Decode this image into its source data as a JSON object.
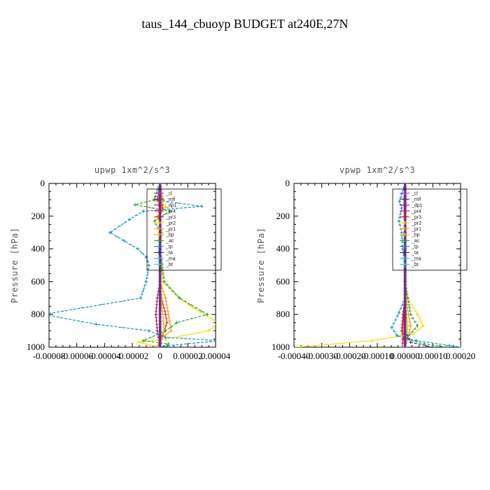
{
  "suptitle": "taus_144_cbuoyp  BUDGET at240E,27N",
  "chart_data": [
    {
      "type": "line",
      "title": "upwp   1xm^2/s^3",
      "ylabel": "Pressure [hPa]",
      "xlim": [
        -8e-05,
        4e-05
      ],
      "ylim": [
        1000,
        0
      ],
      "xticks": [
        "-0.00008",
        "-0.00006",
        "-0.00004",
        "-0.00002",
        "0",
        "0.00002",
        "0.00004"
      ],
      "yticks": [
        "0",
        "200",
        "400",
        "600",
        "800",
        "1000"
      ],
      "legend_position": "top-center",
      "series": [
        {
          "name": "_cl",
          "color": "#8a4bd6",
          "x": [
            0,
            0,
            0,
            0,
            0,
            0,
            0,
            0,
            0,
            0,
            0
          ],
          "y": [
            0,
            100,
            200,
            300,
            400,
            500,
            600,
            700,
            800,
            900,
            1000
          ]
        },
        {
          "name": "_mfl",
          "color": "#6a2c8f",
          "x": [
            0,
            0,
            0,
            0,
            0,
            0,
            0,
            0,
            0,
            0,
            0
          ],
          "y": [
            0,
            100,
            200,
            300,
            400,
            500,
            600,
            700,
            800,
            900,
            1000
          ]
        },
        {
          "name": "_dp1",
          "color": "#b0135c",
          "x": [
            0,
            2e-06,
            -1e-06,
            1e-06,
            0,
            5e-07,
            0,
            -2e-06,
            -3e-06,
            -2e-06,
            0
          ],
          "y": [
            0,
            100,
            200,
            300,
            400,
            500,
            600,
            700,
            800,
            900,
            1000
          ]
        },
        {
          "name": "_pr4",
          "color": "#c8186e",
          "x": [
            0,
            1e-06,
            0,
            0,
            0,
            0,
            0,
            0,
            0,
            0,
            0
          ],
          "y": [
            0,
            100,
            200,
            300,
            400,
            500,
            600,
            700,
            800,
            900,
            1000
          ]
        },
        {
          "name": "_pr3",
          "color": "#e0222a",
          "x": [
            0,
            -2e-06,
            2e-06,
            -1e-06,
            1e-06,
            0,
            0,
            1e-06,
            4e-06,
            5e-06,
            1e-06,
            -2e-06
          ],
          "y": [
            0,
            100,
            150,
            200,
            300,
            400,
            600,
            700,
            800,
            850,
            950,
            1000
          ]
        },
        {
          "name": "_pr2",
          "color": "#f3e000",
          "x": [
            0,
            -5e-06,
            4e-06,
            -2e-06,
            1e-06,
            0,
            2e-06,
            1.4e-05,
            2.4e-05,
            4.2e-05,
            3.5e-05,
            4e-06,
            -1.6e-05,
            0
          ],
          "y": [
            0,
            100,
            140,
            200,
            300,
            400,
            600,
            700,
            760,
            850,
            900,
            950,
            970,
            1000
          ]
        },
        {
          "name": "_pr1",
          "color": "#f0a020",
          "x": [
            0,
            2e-06,
            0,
            0,
            0,
            0,
            0,
            4e-06,
            6e-06,
            8e-06,
            0,
            0
          ],
          "y": [
            0,
            100,
            200,
            300,
            400,
            500,
            600,
            700,
            800,
            900,
            950,
            1000
          ]
        },
        {
          "name": "_bp",
          "color": "#d7c400",
          "x": [
            0,
            1e-06,
            0,
            0,
            0,
            0,
            0,
            1e-06,
            2e-06,
            3e-06,
            0,
            0
          ],
          "y": [
            0,
            100,
            200,
            300,
            400,
            500,
            600,
            700,
            800,
            900,
            950,
            1000
          ]
        },
        {
          "name": "_ac",
          "color": "#2aa52a",
          "x": [
            0,
            -4e-06,
            -1.8e-05,
            7e-06,
            -4e-06,
            0,
            0,
            3e-06,
            1.4e-05,
            3.4e-05,
            1.2e-05,
            4e-06,
            -1.2e-05,
            6e-06,
            0
          ],
          "y": [
            0,
            100,
            130,
            170,
            230,
            300,
            400,
            600,
            700,
            800,
            850,
            900,
            960,
            980,
            1000
          ]
        },
        {
          "name": "_tp",
          "color": "#1a8ec0",
          "x": [
            0,
            -4e-06,
            3e-05,
            -1.2e-05,
            -2.2e-05,
            -3.6e-05,
            -2.6e-05,
            -1.6e-05,
            -1e-05,
            -8e-06,
            -1e-05,
            -1.4e-05,
            -8.4e-05,
            -4.6e-05,
            -8e-06,
            4e-06,
            4.4e-05,
            6e-06,
            0
          ],
          "y": [
            0,
            100,
            140,
            170,
            220,
            300,
            350,
            400,
            450,
            500,
            600,
            700,
            800,
            860,
            900,
            940,
            960,
            990,
            1000
          ]
        },
        {
          "name": "_ta",
          "color": "#1c3d8a",
          "x": [
            0,
            0,
            0,
            0,
            0,
            0,
            0,
            0,
            0,
            0,
            0
          ],
          "y": [
            0,
            100,
            200,
            300,
            400,
            500,
            600,
            700,
            800,
            900,
            1000
          ]
        },
        {
          "name": "_ma",
          "color": "#2fbcd8",
          "x": [
            0,
            0,
            0,
            0,
            0,
            0,
            0,
            0,
            0,
            0,
            0
          ],
          "y": [
            0,
            100,
            200,
            300,
            400,
            500,
            600,
            700,
            800,
            900,
            1000
          ]
        },
        {
          "name": "_bt",
          "color": "#28d4e8",
          "x": [
            0,
            0,
            0,
            0,
            0,
            0,
            0,
            0,
            0,
            0,
            0
          ],
          "y": [
            0,
            100,
            200,
            300,
            400,
            500,
            600,
            700,
            800,
            900,
            1000
          ]
        }
      ]
    },
    {
      "type": "line",
      "title": "vpwp   1xm^2/s^3",
      "ylabel": "Pressure [hPa]",
      "xlim": [
        -0.0004,
        0.0002
      ],
      "ylim": [
        1000,
        0
      ],
      "xticks": [
        "-0.00040",
        "-0.00030",
        "-0.00020",
        "-0.00010",
        "0.00000",
        "0.00010",
        "0.00020"
      ],
      "yticks": [
        "0",
        "200",
        "400",
        "600",
        "800",
        "1000"
      ],
      "legend_position": "top-center",
      "series": [
        {
          "name": "_cl",
          "color": "#8a4bd6",
          "x": [
            0,
            0,
            0,
            0,
            0,
            0,
            0,
            0,
            0,
            0,
            0
          ],
          "y": [
            0,
            100,
            200,
            300,
            400,
            500,
            600,
            700,
            800,
            900,
            1000
          ]
        },
        {
          "name": "_mfl",
          "color": "#6a2c8f",
          "x": [
            0,
            0,
            0,
            0,
            0,
            0,
            0,
            0,
            0,
            0,
            0
          ],
          "y": [
            0,
            100,
            200,
            300,
            400,
            500,
            600,
            700,
            800,
            900,
            1000
          ]
        },
        {
          "name": "_dp1",
          "color": "#b0135c",
          "x": [
            0,
            2e-06,
            0,
            0,
            0,
            0,
            0,
            0,
            -5e-06,
            -8e-06,
            -5e-06,
            0
          ],
          "y": [
            0,
            100,
            200,
            300,
            400,
            500,
            600,
            700,
            800,
            900,
            950,
            1000
          ]
        },
        {
          "name": "_pr4",
          "color": "#c8186e",
          "x": [
            0,
            0,
            0,
            0,
            0,
            0,
            0,
            0,
            0,
            0,
            0
          ],
          "y": [
            0,
            100,
            200,
            300,
            400,
            500,
            600,
            700,
            800,
            900,
            1000
          ]
        },
        {
          "name": "_pr3",
          "color": "#e0222a",
          "x": [
            0,
            0,
            0,
            0,
            0,
            0,
            0,
            0,
            -8e-06,
            -1.2e-05,
            -8e-06,
            -1e-05
          ],
          "y": [
            0,
            100,
            200,
            300,
            400,
            500,
            600,
            700,
            800,
            900,
            950,
            1000
          ]
        },
        {
          "name": "_pr2",
          "color": "#f3e000",
          "x": [
            0,
            0,
            0,
            0,
            0,
            0,
            0,
            8e-06,
            4.5e-05,
            6.5e-05,
            2.8e-05,
            -0.00012,
            -0.00039
          ],
          "y": [
            0,
            100,
            200,
            300,
            400,
            500,
            600,
            700,
            800,
            870,
            920,
            960,
            1000
          ]
        },
        {
          "name": "_pr1",
          "color": "#f0a020",
          "x": [
            0,
            0,
            0,
            0,
            0,
            0,
            0,
            4e-06,
            1.2e-05,
            2e-05,
            1e-05,
            0
          ],
          "y": [
            0,
            100,
            200,
            300,
            400,
            500,
            600,
            700,
            800,
            870,
            950,
            1000
          ]
        },
        {
          "name": "_bp",
          "color": "#d7c400",
          "x": [
            0,
            0,
            0,
            0,
            0,
            0,
            0,
            0,
            5e-06,
            1e-05,
            4e-06,
            0
          ],
          "y": [
            0,
            100,
            200,
            300,
            400,
            500,
            600,
            700,
            800,
            870,
            950,
            1000
          ]
        },
        {
          "name": "_ac",
          "color": "#2aa52a",
          "x": [
            0,
            -4e-06,
            0,
            0,
            0,
            0,
            0,
            1e-05,
            2e-05,
            4.5e-05,
            2.5e-06,
            7e-05,
            0.00015
          ],
          "y": [
            0,
            100,
            200,
            300,
            400,
            500,
            600,
            700,
            800,
            870,
            950,
            980,
            1000
          ]
        },
        {
          "name": "_tp",
          "color": "#1a8ec0",
          "x": [
            0,
            -2e-05,
            -1.2e-05,
            -2.2e-05,
            -1.2e-05,
            -8e-06,
            0,
            0,
            -2.2e-05,
            -4.8e-05,
            -2.8e-05,
            4e-05,
            0.00016,
            0.0002
          ],
          "y": [
            0,
            110,
            150,
            230,
            300,
            400,
            500,
            700,
            790,
            880,
            930,
            960,
            990,
            1000
          ]
        },
        {
          "name": "_ta",
          "color": "#1c3d8a",
          "x": [
            0,
            0,
            0,
            0,
            0,
            0,
            0,
            0,
            0,
            0,
            2e-05,
            0.0001
          ],
          "y": [
            0,
            100,
            200,
            300,
            400,
            500,
            600,
            700,
            800,
            900,
            970,
            1000
          ]
        },
        {
          "name": "_ma",
          "color": "#2fbcd8",
          "x": [
            0,
            0,
            0,
            0,
            0,
            0,
            0,
            0,
            0,
            0,
            0
          ],
          "y": [
            0,
            100,
            200,
            300,
            400,
            500,
            600,
            700,
            800,
            900,
            1000
          ]
        },
        {
          "name": "_bt",
          "color": "#28d4e8",
          "x": [
            0,
            0,
            0,
            0,
            0,
            0,
            0,
            0,
            0,
            0,
            0
          ],
          "y": [
            0,
            100,
            200,
            300,
            400,
            500,
            600,
            700,
            800,
            900,
            1000
          ]
        }
      ]
    }
  ]
}
